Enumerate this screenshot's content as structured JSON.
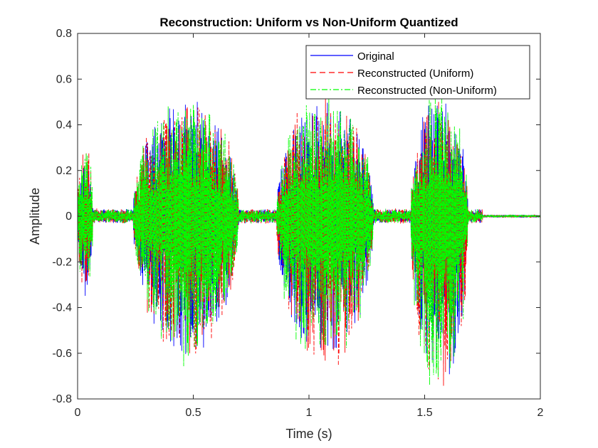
{
  "chart_data": {
    "type": "line",
    "title": "Reconstruction: Uniform vs Non-Uniform Quantized",
    "xlabel": "Time (s)",
    "ylabel": "Amplitude",
    "xlim": [
      0,
      2
    ],
    "ylim": [
      -0.8,
      0.8
    ],
    "xticks": [
      0,
      0.5,
      1,
      1.5,
      2
    ],
    "xtick_labels": [
      "0",
      "0.5",
      "1",
      "1.5",
      "2"
    ],
    "yticks": [
      -0.8,
      -0.6,
      -0.4,
      -0.2,
      0,
      0.2,
      0.4,
      0.6,
      0.8
    ],
    "ytick_labels": [
      "-0.8",
      "-0.6",
      "-0.4",
      "-0.2",
      "0",
      "0.2",
      "0.4",
      "0.6",
      "0.8"
    ],
    "grid": true,
    "legend_position": "top-right",
    "series": [
      {
        "name": "Original",
        "color": "#0000ff",
        "style": "solid"
      },
      {
        "name": "Reconstructed (Uniform)",
        "color": "#ff0000",
        "style": "dashed"
      },
      {
        "name": "Reconstructed (Non-Uniform)",
        "color": "#00ff00",
        "style": "dash-dot"
      }
    ],
    "envelope": {
      "note_units": "seconds / amplitude",
      "segments": [
        {
          "t_start": 0.0,
          "t_end": 0.07,
          "upper": 0.3,
          "lower": -0.35
        },
        {
          "t_start": 0.24,
          "t_end": 0.72,
          "upper": 0.5,
          "lower": -0.6
        },
        {
          "t_start": 0.86,
          "t_end": 1.3,
          "upper": 0.5,
          "lower": -0.62
        },
        {
          "t_start": 1.44,
          "t_end": 1.7,
          "upper": 0.52,
          "lower": -0.75
        }
      ],
      "noise_floor": 0.03
    }
  }
}
